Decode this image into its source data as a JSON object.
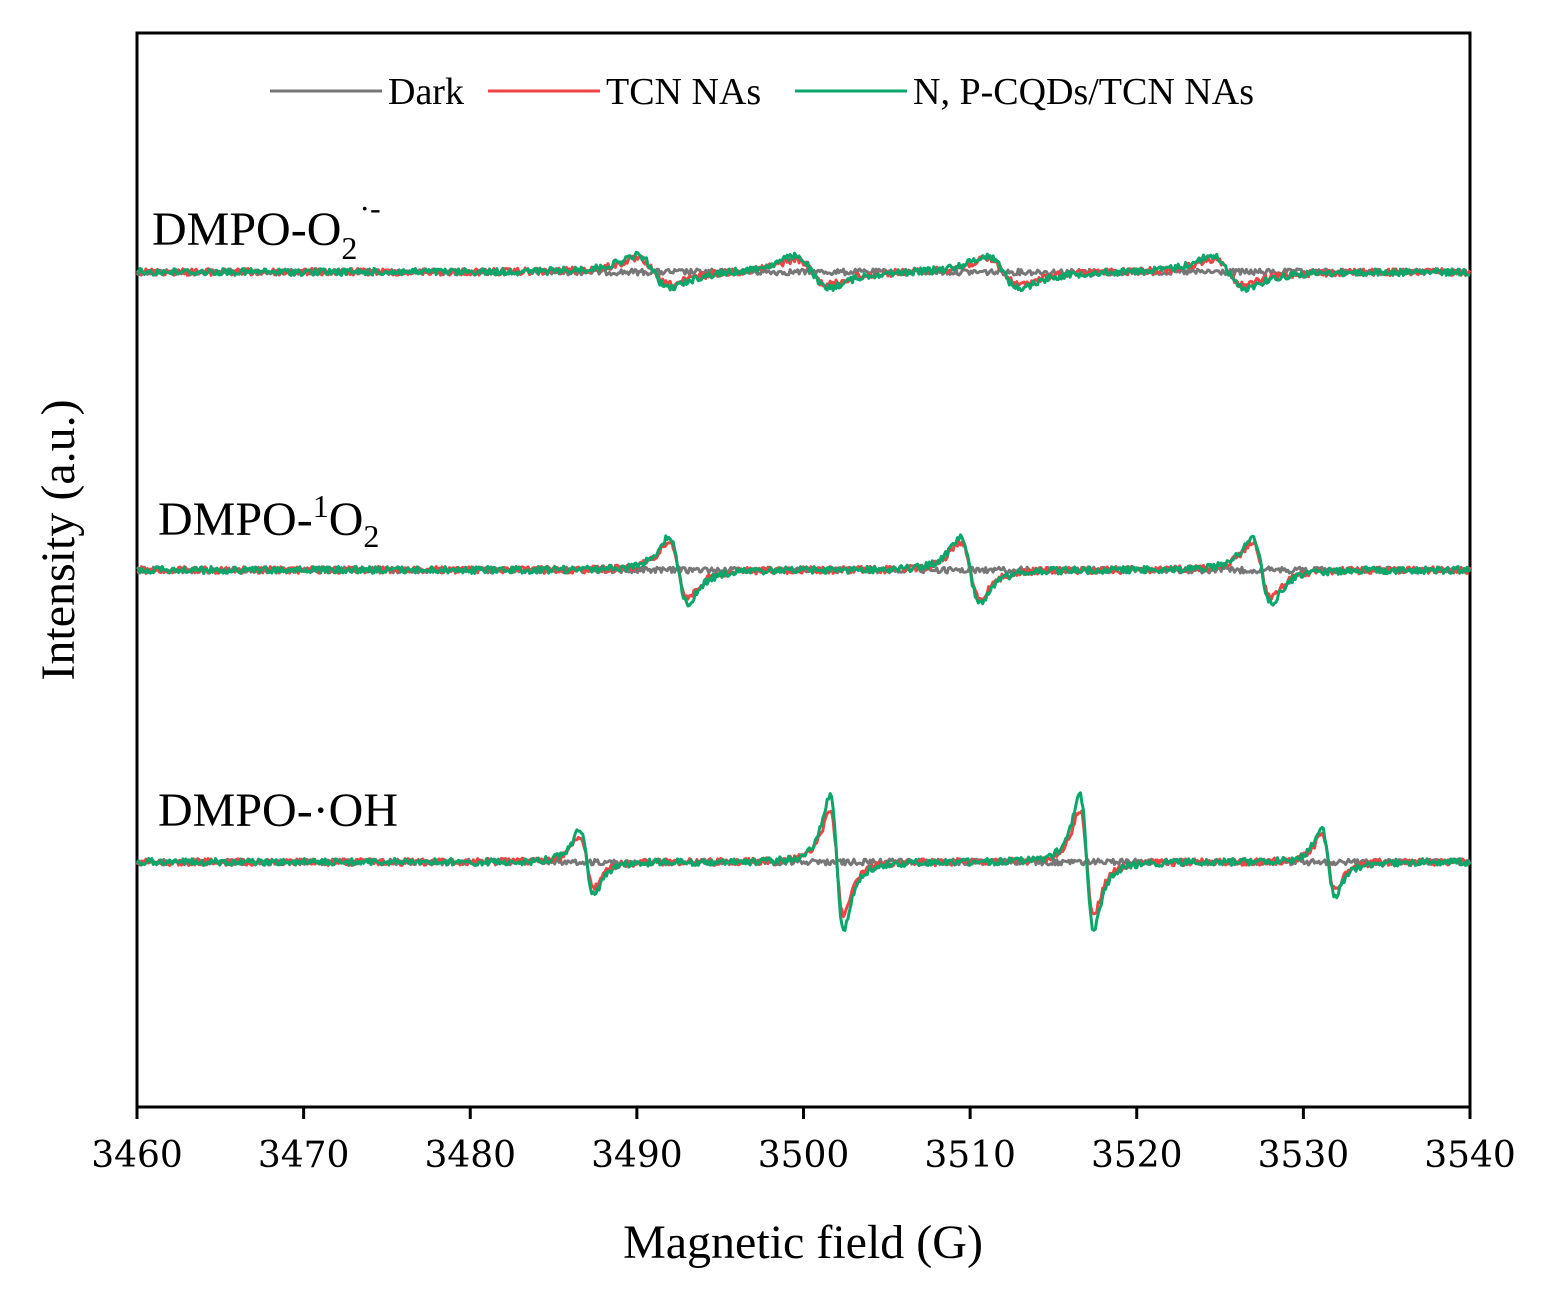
{
  "chart_data": {
    "type": "line",
    "title": "",
    "xlabel": "Magnetic field (G)",
    "ylabel": "Intensity (a.u.)",
    "xlim": [
      3460,
      3540
    ],
    "xticks": [
      3460,
      3470,
      3480,
      3490,
      3500,
      3510,
      3520,
      3530,
      3540
    ],
    "yticks": [],
    "grid": false,
    "legend_position": "top",
    "colors": {
      "Dark": "#777777",
      "TCN NAs": "#ef4444",
      "N, P-CQDs/TCN NAs": "#0aa66a"
    },
    "legend": [
      "Dark",
      "TCN NAs",
      "N, P-CQDs/TCN NAs"
    ],
    "panels": [
      {
        "name": "superoxide",
        "label_main": "DMPO-O",
        "label_sub": "2",
        "label_sup": "·-",
        "peaks_x": [
          3491,
          3500.5,
          3512,
          3525.5
        ],
        "amplitude": {
          "Dark": 0,
          "TCN NAs": 0.8,
          "N, P-CQDs/TCN NAs": 1.0
        },
        "peak_shape": "broad",
        "series": [
          {
            "name": "Dark",
            "amplitude": 0
          },
          {
            "name": "TCN NAs",
            "amplitude": 0.8
          },
          {
            "name": "N, P-CQDs/TCN NAs",
            "amplitude": 1.0
          }
        ]
      },
      {
        "name": "singlet-oxygen",
        "label_pre": "DMPO-",
        "label_sup": "1",
        "label_main": "O",
        "label_sub": "2",
        "peaks_x": [
          3492.5,
          3510,
          3527.5
        ],
        "amplitude": {
          "Dark": 0,
          "TCN NAs": 0.85,
          "N, P-CQDs/TCN NAs": 1.0
        },
        "peak_shape": "sharp",
        "series": [
          {
            "name": "Dark",
            "amplitude": 0
          },
          {
            "name": "TCN NAs",
            "amplitude": 0.85
          },
          {
            "name": "N, P-CQDs/TCN NAs",
            "amplitude": 1.0
          }
        ]
      },
      {
        "name": "hydroxyl",
        "label_main": "DMPO-·OH",
        "peaks_x": [
          3487,
          3502,
          3517,
          3531.5
        ],
        "peak_ratio": [
          1,
          2,
          2,
          1
        ],
        "amplitude": {
          "Dark": 0,
          "TCN NAs": 0.8,
          "N, P-CQDs/TCN NAs": 1.0
        },
        "peak_shape": "sharp",
        "series": [
          {
            "name": "Dark",
            "amplitude": 0
          },
          {
            "name": "TCN NAs",
            "amplitude": 0.8
          },
          {
            "name": "N, P-CQDs/TCN NAs",
            "amplitude": 1.0
          }
        ]
      }
    ]
  }
}
